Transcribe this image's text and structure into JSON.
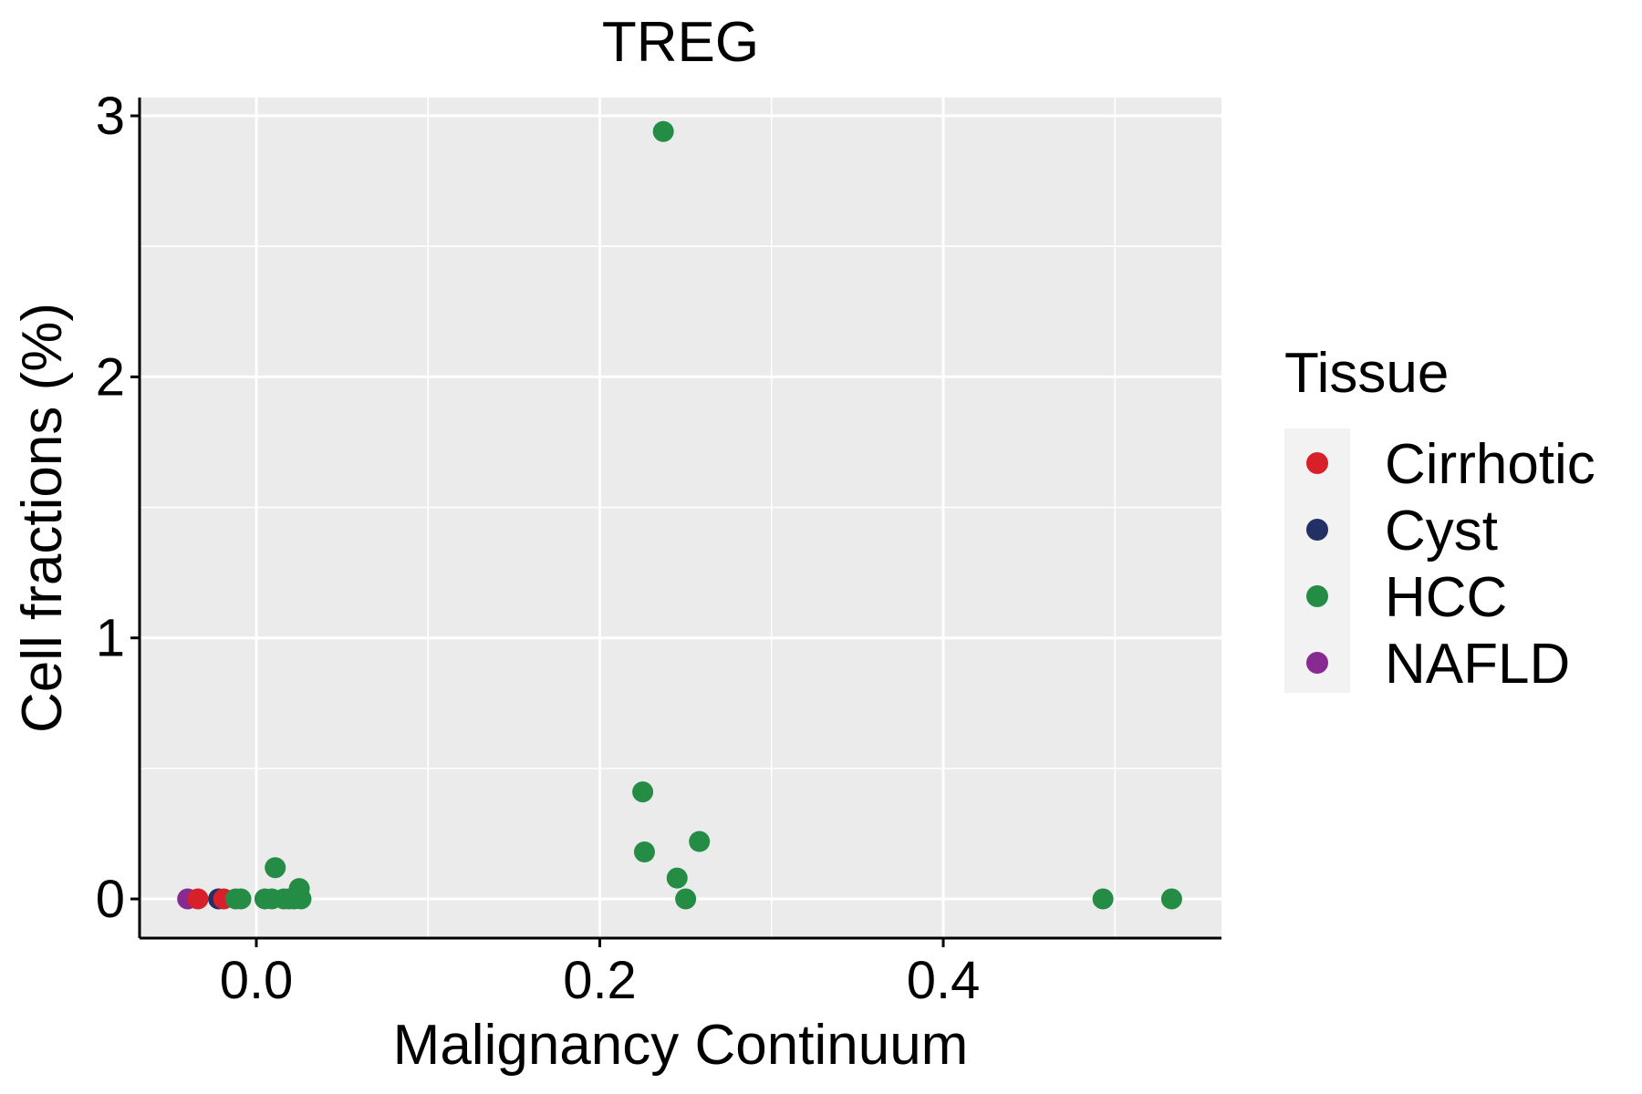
{
  "chart_data": {
    "type": "scatter",
    "title": "TREG",
    "xlabel": "Malignancy Continuum",
    "ylabel": "Cell fractions (%)",
    "xlim": [
      -0.068,
      0.562
    ],
    "ylim": [
      -0.15,
      3.07
    ],
    "x_ticks": [
      0.0,
      0.2,
      0.4
    ],
    "x_tick_labels": [
      "0.0",
      "0.2",
      "0.4"
    ],
    "x_minor_ticks": [
      0.1,
      0.3,
      0.5
    ],
    "y_ticks": [
      0,
      1,
      2,
      3
    ],
    "y_tick_labels": [
      "0",
      "1",
      "2",
      "3"
    ],
    "y_minor_ticks": [
      0.5,
      1.5,
      2.5
    ],
    "grid": true,
    "legend": {
      "title": "Tissue",
      "position": "right",
      "entries": [
        {
          "name": "Cirrhotic",
          "color": "#d7202a"
        },
        {
          "name": "Cyst",
          "color": "#233066"
        },
        {
          "name": "HCC",
          "color": "#258c45"
        },
        {
          "name": "NAFLD",
          "color": "#872b93"
        }
      ]
    },
    "series": [
      {
        "name": "NAFLD",
        "color": "#872b93",
        "points": [
          [
            -0.04,
            0.0
          ]
        ]
      },
      {
        "name": "Cyst",
        "color": "#233066",
        "points": [
          [
            -0.022,
            0.0
          ]
        ]
      },
      {
        "name": "Cirrhotic",
        "color": "#d7202a",
        "points": [
          [
            -0.034,
            0.0
          ],
          [
            -0.019,
            0.0
          ]
        ]
      },
      {
        "name": "HCC",
        "color": "#258c45",
        "points": [
          [
            -0.012,
            0.0
          ],
          [
            -0.009,
            0.0
          ],
          [
            0.005,
            0.0
          ],
          [
            0.009,
            0.0
          ],
          [
            0.011,
            0.12
          ],
          [
            0.016,
            0.0
          ],
          [
            0.019,
            0.0
          ],
          [
            0.022,
            0.0
          ],
          [
            0.025,
            0.04
          ],
          [
            0.026,
            0.0
          ],
          [
            0.225,
            0.41
          ],
          [
            0.226,
            0.18
          ],
          [
            0.237,
            2.94
          ],
          [
            0.245,
            0.08
          ],
          [
            0.25,
            0.0
          ],
          [
            0.258,
            0.22
          ],
          [
            0.493,
            0.0
          ],
          [
            0.533,
            0.0
          ]
        ]
      }
    ]
  }
}
